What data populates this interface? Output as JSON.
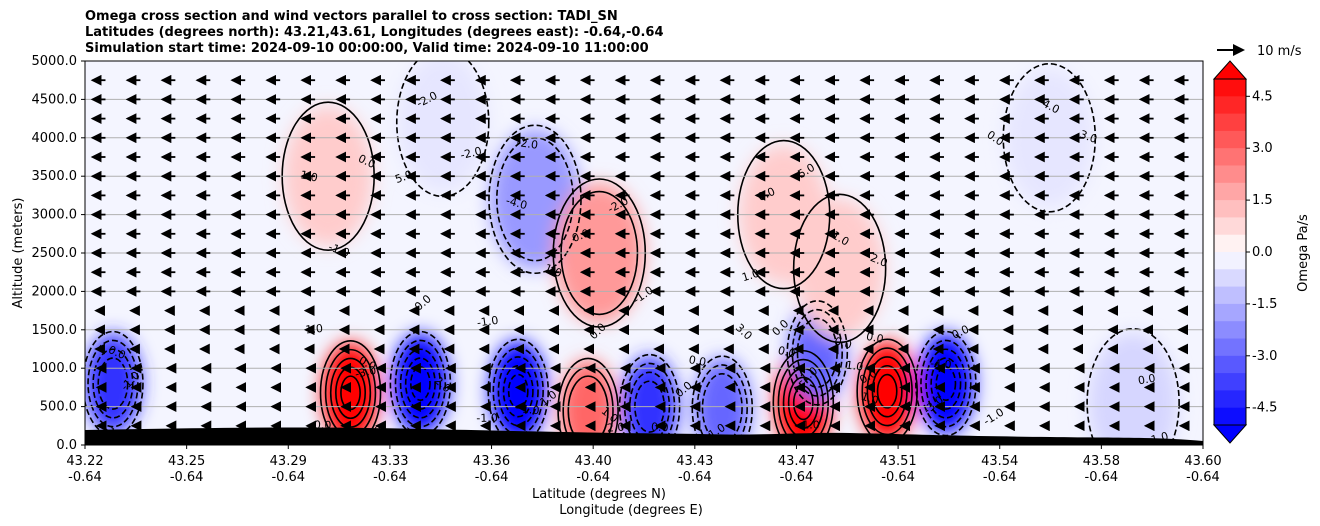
{
  "chart_data": {
    "type": "contour",
    "title_lines": [
      "Omega cross section and wind vectors parallel to cross section: TADI_SN",
      "Latitudes (degrees north): 43.21,43.61, Longitudes (degrees east): -0.64,-0.64",
      "Simulation start time: 2024-09-10 00:00:00, Valid time: 2024-09-10 11:00:00"
    ],
    "ylabel": "Altitude (meters)",
    "xlabel_line1": "Latitude (degrees N)",
    "xlabel_line2": "Longitude (degrees E)",
    "ylim": [
      0,
      5000
    ],
    "y_ticks": [
      "0.0",
      "500.0",
      "1000.0",
      "1500.0",
      "2000.0",
      "2500.0",
      "3000.0",
      "3500.0",
      "4000.0",
      "4500.0",
      "5000.0"
    ],
    "x_ticks": [
      {
        "lat": "43.22",
        "lon": "-0.64"
      },
      {
        "lat": "43.25",
        "lon": "-0.64"
      },
      {
        "lat": "43.29",
        "lon": "-0.64"
      },
      {
        "lat": "43.33",
        "lon": "-0.64"
      },
      {
        "lat": "43.36",
        "lon": "-0.64"
      },
      {
        "lat": "43.40",
        "lon": "-0.64"
      },
      {
        "lat": "43.43",
        "lon": "-0.64"
      },
      {
        "lat": "43.47",
        "lon": "-0.64"
      },
      {
        "lat": "43.51",
        "lon": "-0.64"
      },
      {
        "lat": "43.54",
        "lon": "-0.64"
      },
      {
        "lat": "43.58",
        "lon": "-0.64"
      },
      {
        "lat": "43.60",
        "lon": "-0.64"
      }
    ],
    "grid": true,
    "colorbar": {
      "label": "Omega Pa/s",
      "range": [
        -5,
        5
      ],
      "ticks": [
        "-4.5",
        "-3.0",
        "-1.5",
        "0.0",
        "1.5",
        "3.0",
        "4.5"
      ],
      "tick_values": [
        -4.5,
        -3.0,
        -1.5,
        0.0,
        1.5,
        3.0,
        4.5
      ],
      "cmap": "bwr",
      "levels": 20
    },
    "quiver_key": {
      "label": "10 m/s"
    },
    "wind_direction": "leftward (southward component dominant)",
    "cells": [
      {
        "x": 43.22,
        "y": 800,
        "value": -4.0
      },
      {
        "x": 43.305,
        "y": 680,
        "value": 5.0
      },
      {
        "x": 43.33,
        "y": 800,
        "value": -5.0
      },
      {
        "x": 43.365,
        "y": 700,
        "value": -5.0
      },
      {
        "x": 43.39,
        "y": 450,
        "value": 3.0
      },
      {
        "x": 43.412,
        "y": 500,
        "value": -4.0
      },
      {
        "x": 43.438,
        "y": 480,
        "value": -3.0
      },
      {
        "x": 43.467,
        "y": 550,
        "value": 5.0
      },
      {
        "x": 43.472,
        "y": 1200,
        "value": -3.0
      },
      {
        "x": 43.497,
        "y": 700,
        "value": 5.0
      },
      {
        "x": 43.518,
        "y": 800,
        "value": -5.0
      },
      {
        "x": 43.371,
        "y": 3200,
        "value": -2.0
      },
      {
        "x": 43.394,
        "y": 2500,
        "value": 2.0
      },
      {
        "x": 43.297,
        "y": 3500,
        "value": 1.0
      },
      {
        "x": 43.46,
        "y": 3000,
        "value": 1.0
      },
      {
        "x": 43.48,
        "y": 2300,
        "value": 1.0
      },
      {
        "x": 43.338,
        "y": 4200,
        "value": -0.5
      },
      {
        "x": 43.555,
        "y": 4000,
        "value": -0.5
      },
      {
        "x": 43.585,
        "y": 550,
        "value": -0.8
      }
    ],
    "contour_labels": [
      "-1.0",
      "0.0",
      "0.0",
      "1.0",
      "1.0",
      "0.0",
      "-1.0",
      "0.0",
      "0.0",
      "1.0",
      "0.0",
      "1.0",
      "0.0",
      "0.0",
      "1.0",
      "-1.0",
      "-2.0",
      "0.0",
      "0.0",
      "-1.0",
      "1.0",
      "2.0",
      "-1.0",
      "0.0",
      "0.0",
      "0.0",
      "1.0",
      "-1.0",
      "0.0",
      "-1.0",
      "-4.0",
      "-2.0",
      "-1.0",
      "0.0",
      "2.0",
      "5.0",
      "4.0",
      "-1.0",
      "-3.0",
      "-3.0",
      "-2.0",
      "-1.0",
      "1.0",
      "2.0",
      "3.0",
      "1.0",
      "0.0",
      "-4.0",
      "-3.0",
      "-2.0",
      "-1.0",
      "1.0",
      "5.0",
      "0.0",
      "-2.0",
      "3.0",
      "5.0",
      "0.0",
      "-1.0",
      "0.0"
    ]
  }
}
